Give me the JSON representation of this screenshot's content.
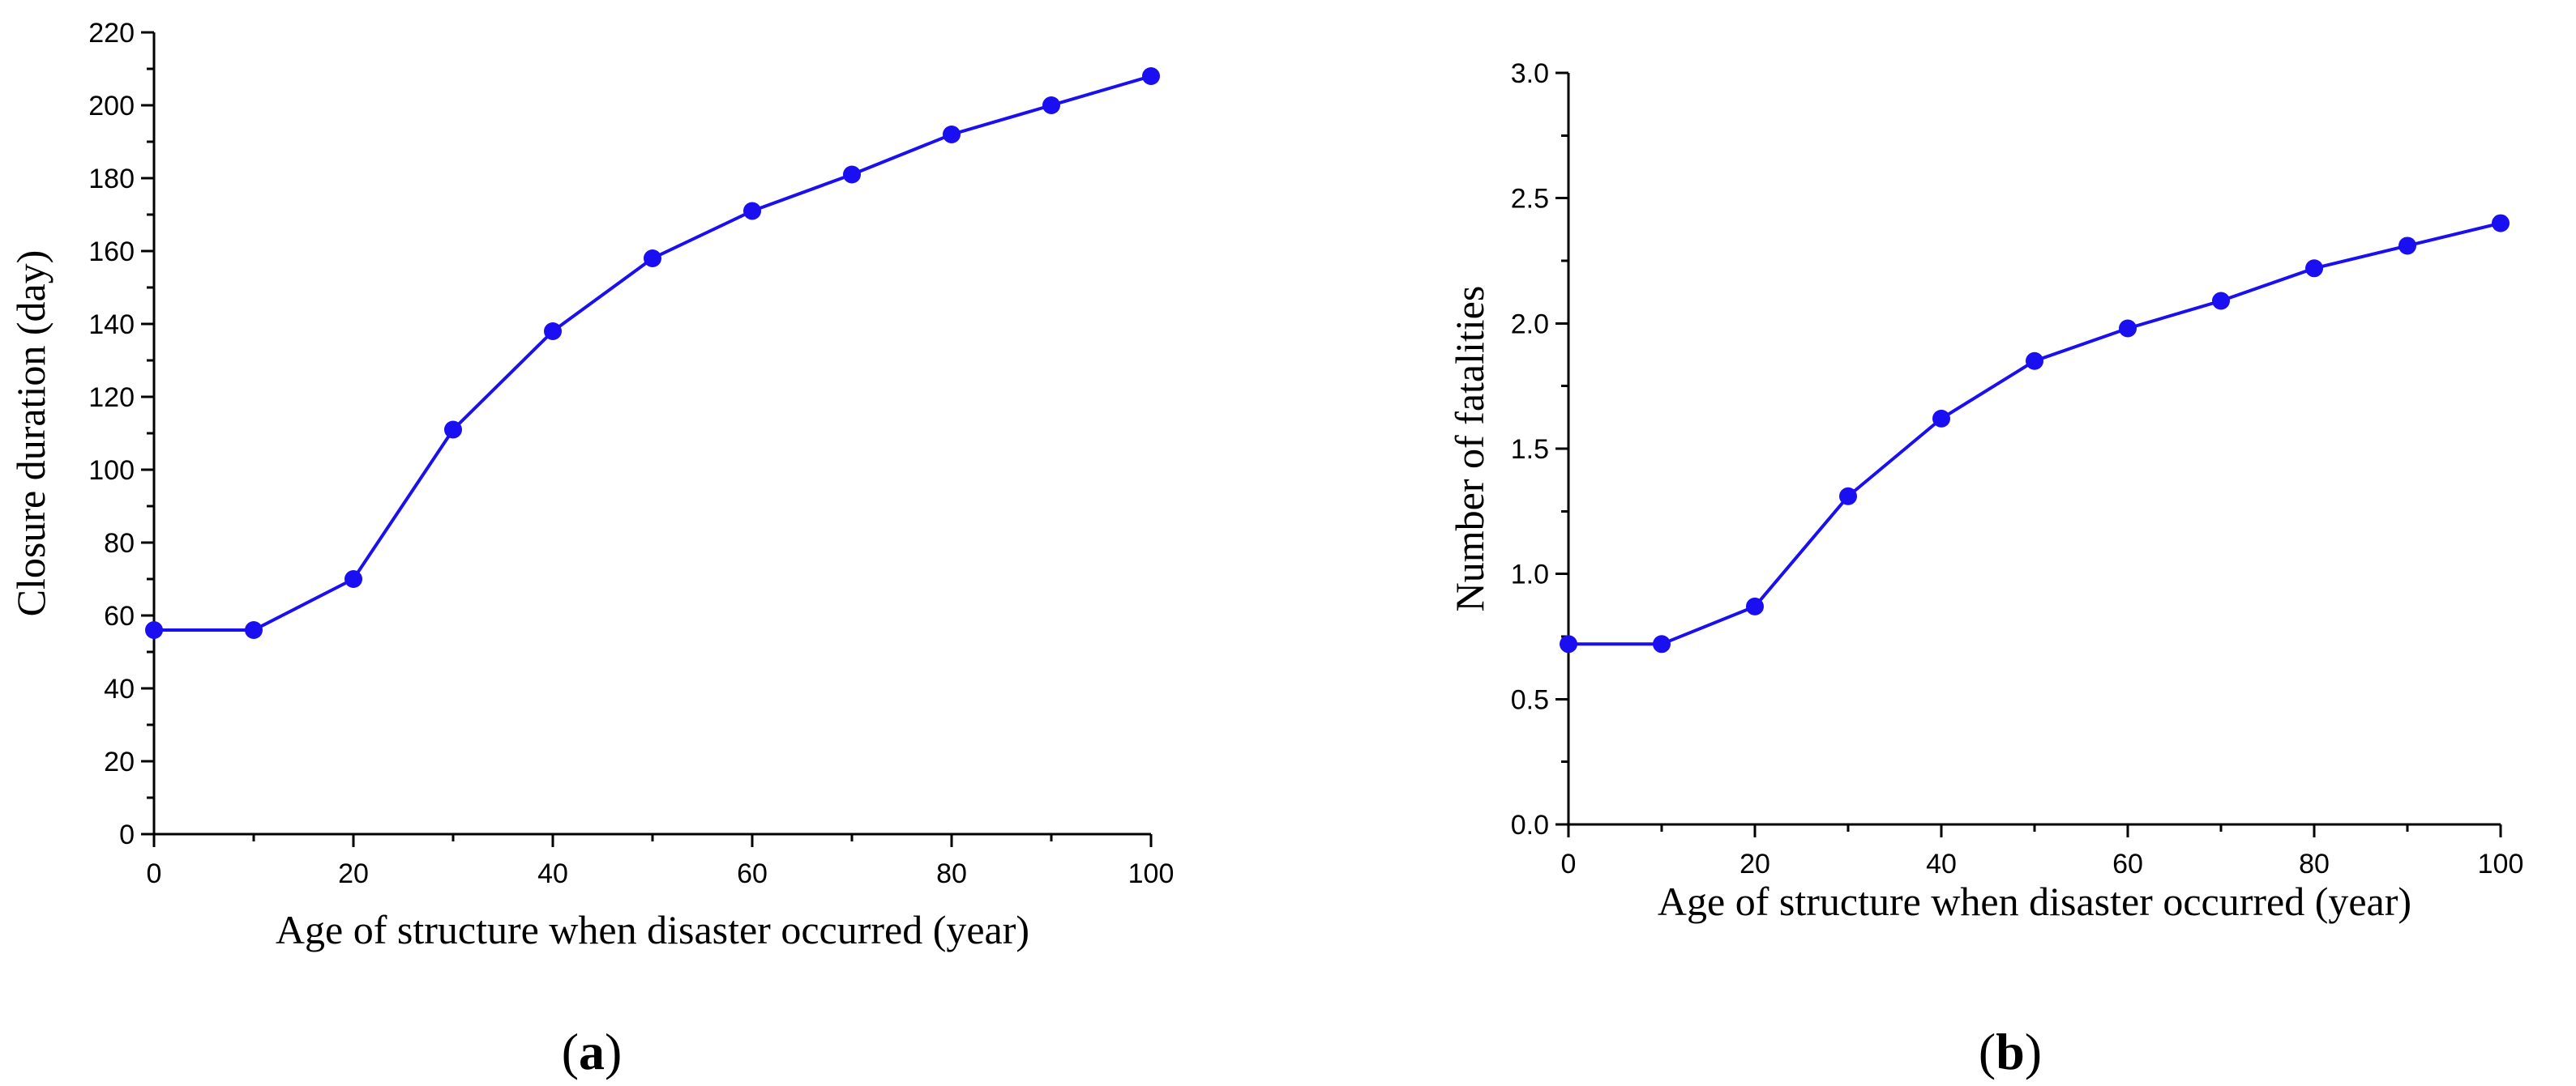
{
  "chart_data": [
    {
      "type": "line",
      "panel_label": "a",
      "title": "",
      "xlabel": "Age of structure when disaster occurred (year)",
      "ylabel": "Closure duration (day)",
      "xlim": [
        0,
        100
      ],
      "ylim": [
        0,
        220
      ],
      "xticks": [
        "0",
        "20",
        "40",
        "60",
        "80",
        "100"
      ],
      "yticks": [
        "0",
        "20",
        "40",
        "60",
        "80",
        "100",
        "120",
        "140",
        "160",
        "180",
        "200",
        "220"
      ],
      "grid": false,
      "series": [
        {
          "name": "Closure duration",
          "color": "#1a0ff0",
          "x": [
            0,
            10,
            20,
            30,
            40,
            50,
            60,
            70,
            80,
            90,
            100
          ],
          "values": [
            56,
            56,
            70,
            111,
            138,
            158,
            171,
            181,
            192,
            200,
            208
          ]
        }
      ]
    },
    {
      "type": "line",
      "panel_label": "b",
      "title": "",
      "xlabel": "Age of structure when disaster occurred (year)",
      "ylabel": "Number of fatalities",
      "xlim": [
        0,
        100
      ],
      "ylim": [
        0,
        3
      ],
      "xticks": [
        "0",
        "20",
        "40",
        "60",
        "80",
        "100"
      ],
      "yticks": [
        "0.0",
        "0.5",
        "1.0",
        "1.5",
        "2.0",
        "2.5",
        "3.0"
      ],
      "grid": false,
      "series": [
        {
          "name": "Number of fatalities",
          "color": "#1a0ff0",
          "x": [
            0,
            10,
            20,
            30,
            40,
            50,
            60,
            70,
            80,
            90,
            100
          ],
          "values": [
            0.72,
            0.72,
            0.87,
            1.31,
            1.62,
            1.85,
            1.98,
            2.09,
            2.22,
            2.31,
            2.4
          ]
        }
      ]
    }
  ]
}
